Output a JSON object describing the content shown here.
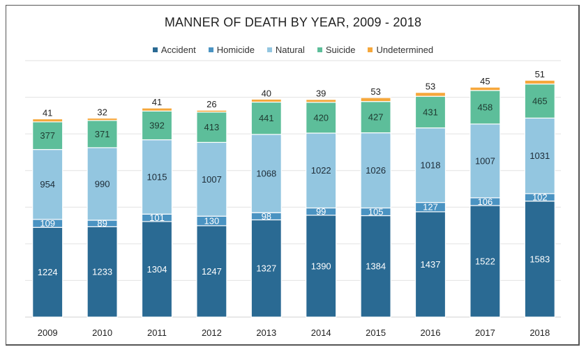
{
  "chart_data": {
    "type": "bar",
    "stacked": true,
    "title": "MANNER OF DEATH BY YEAR, 2009 - 2018",
    "xlabel": "",
    "ylabel": "",
    "ylim": [
      0,
      3500
    ],
    "grid": true,
    "grid_step": 500,
    "legend_position": "top",
    "categories": [
      "2009",
      "2010",
      "2011",
      "2012",
      "2013",
      "2014",
      "2015",
      "2016",
      "2017",
      "2018"
    ],
    "series": [
      {
        "name": "Accident",
        "color": "#2A6A93",
        "label_color": "#ffffff",
        "values": [
          1224,
          1233,
          1304,
          1247,
          1327,
          1390,
          1384,
          1437,
          1522,
          1583
        ]
      },
      {
        "name": "Homicide",
        "color": "#4A93C2",
        "label_color": "#ffffff",
        "values": [
          109,
          89,
          101,
          130,
          98,
          99,
          105,
          127,
          106,
          102
        ]
      },
      {
        "name": "Natural",
        "color": "#93C6E0",
        "label_color": "#1d2b36",
        "values": [
          954,
          990,
          1015,
          1007,
          1068,
          1022,
          1026,
          1018,
          1007,
          1031
        ]
      },
      {
        "name": "Suicide",
        "color": "#5DBE9A",
        "label_color": "#1e3a30",
        "values": [
          377,
          371,
          392,
          413,
          441,
          420,
          427,
          431,
          458,
          465
        ]
      },
      {
        "name": "Undetermined",
        "color": "#F5A73B",
        "label_color": "#222222",
        "label_outside": true,
        "values": [
          41,
          32,
          41,
          26,
          40,
          39,
          53,
          53,
          45,
          51
        ]
      }
    ]
  }
}
